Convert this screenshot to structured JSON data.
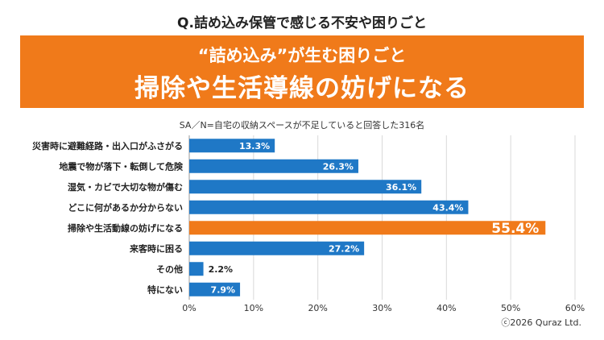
{
  "question": "Q.詰め込み保管で感じる不安や困りごと",
  "banner": {
    "subtitle": "“詰め込み”が生む困りごと",
    "headline": "掃除や生活導線の妨げになる"
  },
  "note": "SA／N=自宅の収納スペースが不足していると回答した316名",
  "copyright": "ⓒ2026 Quraz Ltd.",
  "colors": {
    "primary_bar": "#1f78c6",
    "highlight_bar": "#f07a1a",
    "banner": "#f07a1a"
  },
  "chart_data": {
    "type": "bar",
    "orientation": "horizontal",
    "categories": [
      "災害時に避難経路・出入口がふさがる",
      "地震で物が落下・転倒して危険",
      "湿気・カビで大切な物が傷む",
      "どこに何があるか分からない",
      "掃除や生活動線の妨げになる",
      "来客時に困る",
      "その他",
      "特にない"
    ],
    "values": [
      13.3,
      26.3,
      36.1,
      43.4,
      55.4,
      27.2,
      2.2,
      7.9
    ],
    "value_labels": [
      "13.3%",
      "26.3%",
      "36.1%",
      "43.4%",
      "55.4%",
      "27.2%",
      "2.2%",
      "7.9%"
    ],
    "highlight_index": 4,
    "xlim": [
      0,
      60
    ],
    "xticks": [
      "0%",
      "10%",
      "20%",
      "30%",
      "40%",
      "50%",
      "60%"
    ],
    "grid": true
  }
}
